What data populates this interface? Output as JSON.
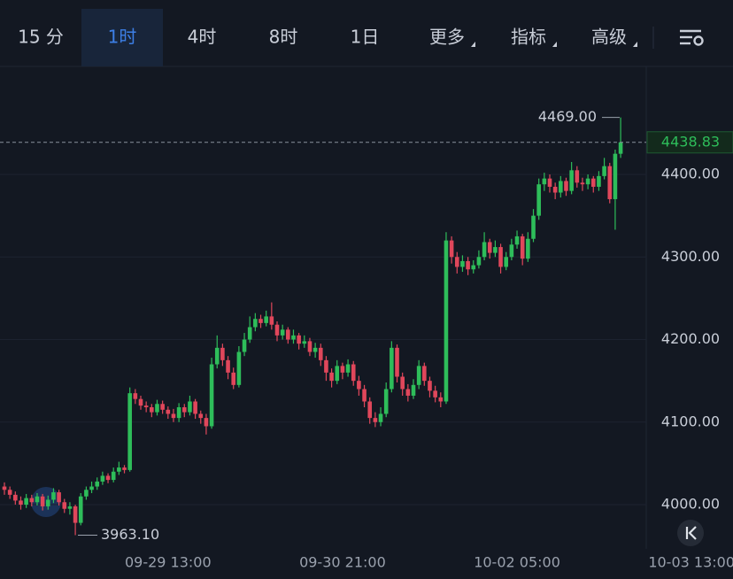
{
  "toolbar": {
    "tabs": [
      {
        "label": "15 分",
        "menu": false
      },
      {
        "label": "1时",
        "menu": false
      },
      {
        "label": "4时",
        "menu": false
      },
      {
        "label": "8时",
        "menu": false
      },
      {
        "label": "1日",
        "menu": false
      },
      {
        "label": "更多",
        "menu": true
      },
      {
        "label": "指标",
        "menu": true
      },
      {
        "label": "高级",
        "menu": true
      }
    ],
    "active": 1
  },
  "chart_data": {
    "type": "candlestick",
    "categories": [
      null,
      null,
      null,
      null,
      null,
      null,
      null,
      null,
      null,
      null,
      null,
      null,
      null,
      null,
      null,
      null,
      null,
      null,
      null,
      null,
      null,
      null,
      null,
      null,
      null,
      null,
      null,
      null,
      null,
      null,
      "09-29 13:00",
      null,
      null,
      null,
      null,
      null,
      null,
      null,
      null,
      null,
      null,
      null,
      null,
      null,
      null,
      null,
      null,
      null,
      null,
      null,
      null,
      null,
      null,
      null,
      null,
      null,
      null,
      null,
      null,
      null,
      null,
      null,
      "09-30 21:00",
      null,
      null,
      null,
      null,
      null,
      null,
      null,
      null,
      null,
      null,
      null,
      null,
      null,
      null,
      null,
      null,
      null,
      null,
      null,
      null,
      null,
      null,
      null,
      null,
      null,
      null,
      null,
      null,
      null,
      null,
      null,
      "10-02 05:00",
      null,
      null,
      null,
      null,
      null,
      null,
      null,
      null,
      null,
      null,
      null,
      null,
      null,
      null,
      null,
      null,
      null,
      null,
      null,
      null,
      null,
      null,
      null,
      null,
      null,
      null,
      null,
      null,
      null,
      null,
      null,
      "10-03 13:00"
    ],
    "open": [
      4022,
      4018,
      4012,
      4005,
      4000,
      4008,
      4003,
      4010,
      3998,
      4006,
      4015,
      4003,
      3995,
      3998,
      3978,
      4010,
      4018,
      4022,
      4028,
      4035,
      4030,
      4040,
      4045,
      4042,
      4135,
      4128,
      4120,
      4118,
      4112,
      4122,
      4115,
      4110,
      4105,
      4118,
      4112,
      4125,
      4110,
      4105,
      4095,
      4170,
      4190,
      4175,
      4160,
      4145,
      4185,
      4200,
      4215,
      4225,
      4220,
      4228,
      4218,
      4205,
      4212,
      4200,
      4205,
      4195,
      4198,
      4185,
      4190,
      4175,
      4160,
      4150,
      4168,
      4160,
      4170,
      4150,
      4140,
      4125,
      4105,
      4100,
      4110,
      4140,
      4190,
      4155,
      4140,
      4132,
      4145,
      4168,
      4150,
      4138,
      4130,
      4125,
      4320,
      4300,
      4288,
      4295,
      4285,
      4290,
      4300,
      4318,
      4305,
      4312,
      4288,
      4300,
      4315,
      4325,
      4298,
      4322,
      4350,
      4388,
      4395,
      4385,
      4378,
      4392,
      4380,
      4405,
      4390,
      4388,
      4395,
      4385,
      4398,
      4410,
      4370,
      4425,
      null,
      null,
      null,
      null,
      null,
      null,
      null,
      null,
      null,
      null,
      null,
      null,
      null
    ],
    "high": [
      4027,
      4022,
      4016,
      4010,
      4013,
      4012,
      4014,
      4013,
      4011,
      4020,
      4018,
      4007,
      4003,
      4000,
      4014,
      4022,
      4028,
      4033,
      4040,
      4038,
      4045,
      4052,
      4048,
      4142,
      4140,
      4132,
      4125,
      4122,
      4127,
      4126,
      4119,
      4116,
      4123,
      4122,
      4132,
      4128,
      4114,
      4110,
      4178,
      4205,
      4195,
      4180,
      4166,
      4192,
      4208,
      4228,
      4232,
      4230,
      4235,
      4245,
      4222,
      4218,
      4215,
      4212,
      4208,
      4205,
      4202,
      4196,
      4195,
      4180,
      4165,
      4175,
      4172,
      4176,
      4174,
      4156,
      4145,
      4130,
      4112,
      4118,
      4148,
      4198,
      4194,
      4160,
      4146,
      4152,
      4175,
      4172,
      4155,
      4144,
      4136,
      4330,
      4325,
      4306,
      4302,
      4300,
      4296,
      4308,
      4330,
      4322,
      4320,
      4316,
      4306,
      4322,
      4332,
      4328,
      4330,
      4358,
      4395,
      4402,
      4400,
      4390,
      4398,
      4396,
      4415,
      4410,
      4396,
      4400,
      4398,
      4404,
      4420,
      4414,
      4430,
      4469,
      null,
      null,
      null,
      null,
      null,
      null,
      null,
      null,
      null,
      null,
      null,
      null,
      null
    ],
    "low": [
      4012,
      4007,
      4000,
      3994,
      3996,
      3998,
      3999,
      3993,
      3994,
      4002,
      3999,
      3990,
      3988,
      3963.1,
      3975,
      4006,
      4014,
      4018,
      4024,
      4026,
      4027,
      4036,
      4038,
      4040,
      4122,
      4115,
      4112,
      4106,
      4108,
      4110,
      4104,
      4100,
      4100,
      4106,
      4108,
      4104,
      4098,
      4085,
      4092,
      4165,
      4168,
      4152,
      4140,
      4142,
      4180,
      4196,
      4210,
      4214,
      4216,
      4212,
      4198,
      4200,
      4195,
      4195,
      4188,
      4190,
      4180,
      4178,
      4168,
      4150,
      4142,
      4146,
      4152,
      4155,
      4144,
      4132,
      4118,
      4098,
      4094,
      4095,
      4106,
      4136,
      4148,
      4132,
      4125,
      4128,
      4140,
      4144,
      4130,
      4124,
      4118,
      4122,
      4292,
      4280,
      4282,
      4278,
      4280,
      4286,
      4296,
      4298,
      4300,
      4280,
      4284,
      4296,
      4310,
      4290,
      4294,
      4318,
      4345,
      4380,
      4378,
      4370,
      4372,
      4374,
      4376,
      4384,
      4380,
      4382,
      4378,
      4380,
      4394,
      4365,
      4333,
      4420,
      null,
      null,
      null,
      null,
      null,
      null,
      null,
      null,
      null,
      null,
      null,
      null,
      null
    ],
    "close": [
      4018,
      4012,
      4005,
      4000,
      4008,
      4003,
      4010,
      3998,
      4006,
      4015,
      4003,
      3995,
      3998,
      3978,
      4010,
      4018,
      4022,
      4028,
      4035,
      4030,
      4040,
      4045,
      4042,
      4135,
      4128,
      4120,
      4118,
      4112,
      4122,
      4115,
      4110,
      4105,
      4118,
      4112,
      4125,
      4110,
      4105,
      4095,
      4170,
      4190,
      4175,
      4160,
      4145,
      4185,
      4200,
      4215,
      4225,
      4220,
      4228,
      4218,
      4205,
      4212,
      4200,
      4205,
      4195,
      4198,
      4185,
      4190,
      4175,
      4160,
      4150,
      4168,
      4160,
      4170,
      4150,
      4140,
      4125,
      4105,
      4100,
      4110,
      4140,
      4190,
      4155,
      4140,
      4132,
      4145,
      4168,
      4150,
      4138,
      4130,
      4125,
      4320,
      4300,
      4288,
      4295,
      4285,
      4290,
      4300,
      4318,
      4305,
      4312,
      4288,
      4300,
      4315,
      4325,
      4298,
      4322,
      4350,
      4388,
      4395,
      4385,
      4378,
      4392,
      4380,
      4405,
      4390,
      4388,
      4395,
      4385,
      4398,
      4410,
      4370,
      4425,
      4438.83,
      null,
      null,
      null,
      null,
      null,
      null,
      null,
      null,
      null,
      null,
      null,
      null,
      null
    ],
    "up_color": "#2ebd5a",
    "down_color": "#e0475b",
    "ylim": [
      3948.6,
      4530.8
    ],
    "yticks": [
      {
        "value": 4000,
        "label": "4000.00"
      },
      {
        "value": 4100,
        "label": "4100.00"
      },
      {
        "value": 4200,
        "label": "4200.00"
      },
      {
        "value": 4300,
        "label": "4300.00"
      },
      {
        "value": 4400,
        "label": "4400.00"
      }
    ],
    "grid": true,
    "last_price": {
      "value": 4438.83,
      "label": "4438.83"
    },
    "annotations": [
      {
        "value": 4469,
        "label": "4469.00"
      },
      {
        "value": 3963.1,
        "label": "3963.10"
      }
    ]
  }
}
